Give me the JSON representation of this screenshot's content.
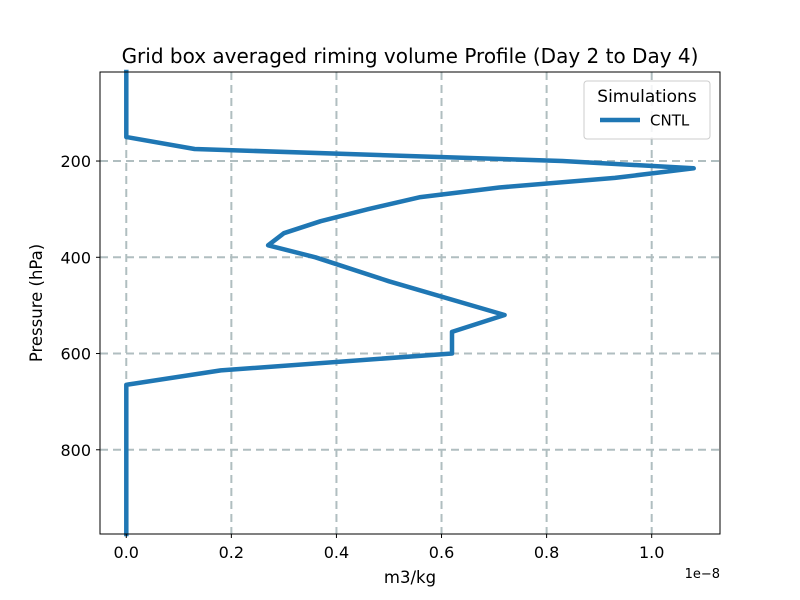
{
  "chart_data": {
    "type": "line",
    "title": "Grid box averaged riming volume Profile (Day 2 to Day 4)",
    "xlabel": "m3/kg",
    "ylabel": "Pressure (hPa)",
    "x_offset_text": "1e−8",
    "x_scale_factor": 1e-08,
    "xlim": [
      -0.05,
      1.13
    ],
    "ylim": [
      975,
      15
    ],
    "y_inverted": true,
    "x_ticks": [
      0.0,
      0.2,
      0.4,
      0.6,
      0.8,
      1.0
    ],
    "x_tick_labels": [
      "0.0",
      "0.2",
      "0.4",
      "0.6",
      "0.8",
      "1.0"
    ],
    "y_ticks": [
      200,
      400,
      600,
      800
    ],
    "y_tick_labels": [
      "200",
      "400",
      "600",
      "800"
    ],
    "grid": true,
    "legend": {
      "title": "Simulations",
      "placement": "top-right"
    },
    "series": [
      {
        "name": "CNTL",
        "color": "#1f77b4",
        "points": [
          [
            0.0,
            15
          ],
          [
            0.0,
            50
          ],
          [
            0.0,
            100
          ],
          [
            0.0,
            150
          ],
          [
            0.13,
            175
          ],
          [
            0.83,
            200
          ],
          [
            1.08,
            215
          ],
          [
            0.93,
            235
          ],
          [
            0.71,
            255
          ],
          [
            0.56,
            275
          ],
          [
            0.46,
            300
          ],
          [
            0.37,
            325
          ],
          [
            0.3,
            350
          ],
          [
            0.27,
            375
          ],
          [
            0.36,
            400
          ],
          [
            0.5,
            450
          ],
          [
            0.72,
            520
          ],
          [
            0.62,
            555
          ],
          [
            0.62,
            600
          ],
          [
            0.18,
            635
          ],
          [
            0.0,
            665
          ],
          [
            0.0,
            700
          ],
          [
            0.0,
            800
          ],
          [
            0.0,
            900
          ],
          [
            0.0,
            975
          ]
        ]
      }
    ]
  }
}
